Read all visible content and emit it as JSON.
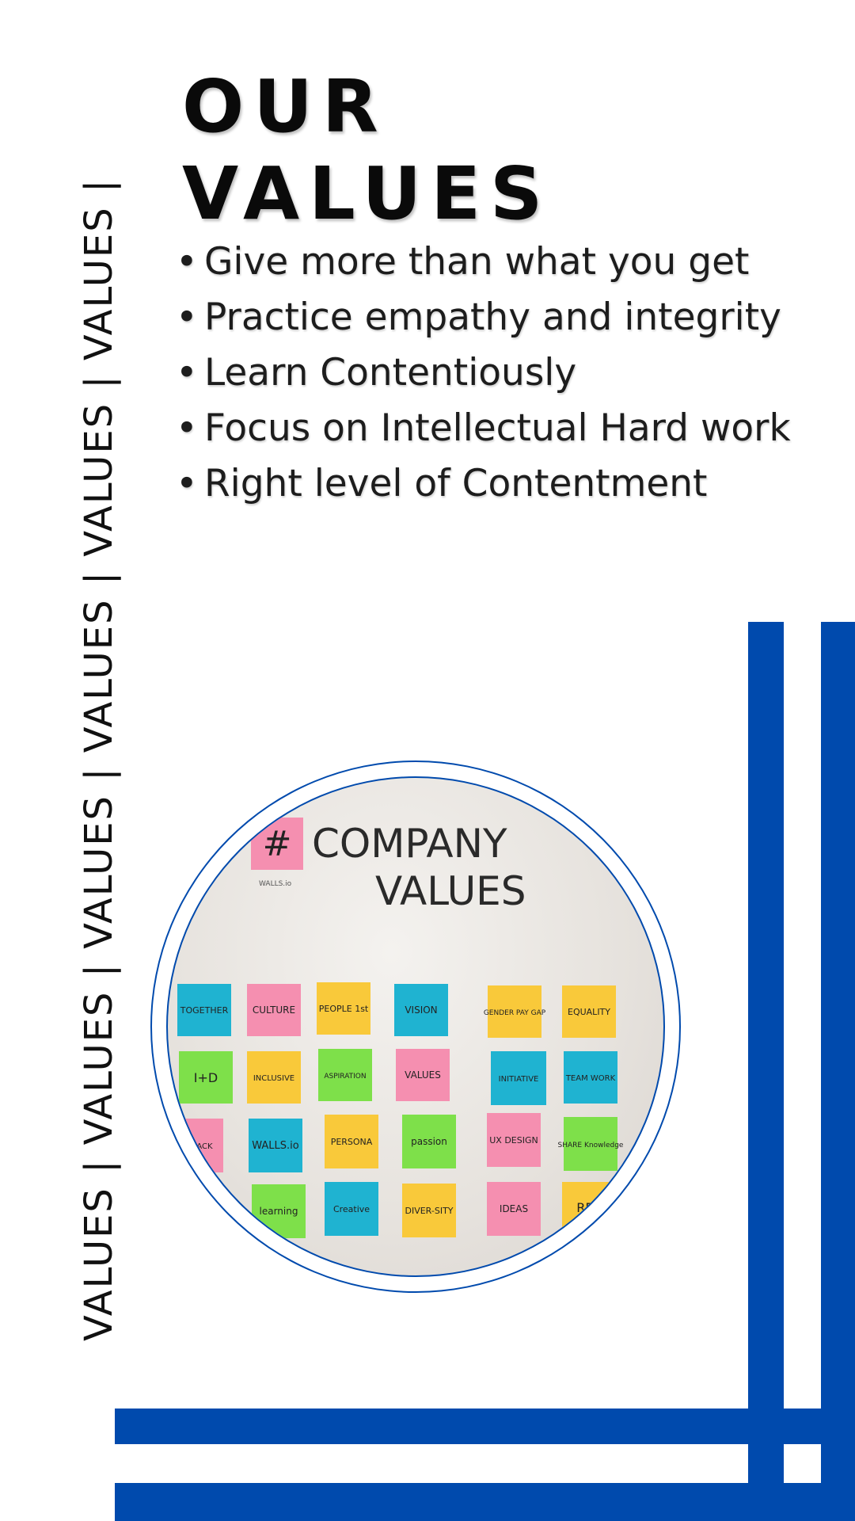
{
  "title": "OUR VALUES",
  "side_text": "VALUES | VALUES | VALUES | VALUES | VALUES | VALUES |",
  "values": [
    "Give more than what you get",
    "Practice empathy and integrity",
    "Learn Contentiously",
    "Focus on Intellectual Hard work",
    "Right level of Contentment"
  ],
  "photo": {
    "heading_line1": "COMPANY",
    "heading_line2": "VALUES",
    "hash_symbol": "#",
    "logo_text": "WALLS.io",
    "notes": [
      "TOGETHER",
      "CULTURE",
      "PEOPLE 1st",
      "VISION",
      "GENDER PAY GAP",
      "EQUALITY",
      "I+D",
      "INCLUSIVE",
      "ASPIRATION",
      "VALUES",
      "INITIATIVE",
      "TEAM WORK",
      "FEEDBACK",
      "WALLS.io",
      "PERSONA",
      "passion",
      "UX DESIGN",
      "SHARE Knowledge",
      "learning",
      "Creative",
      "DIVER-SITY",
      "IDEAS",
      "RES"
    ]
  },
  "colors": {
    "accent": "#004aad",
    "text": "#111111",
    "sticky_cyan": "#1fb3d1",
    "sticky_pink": "#f58fb0",
    "sticky_yellow": "#f9c93a",
    "sticky_green": "#7ee04a"
  }
}
